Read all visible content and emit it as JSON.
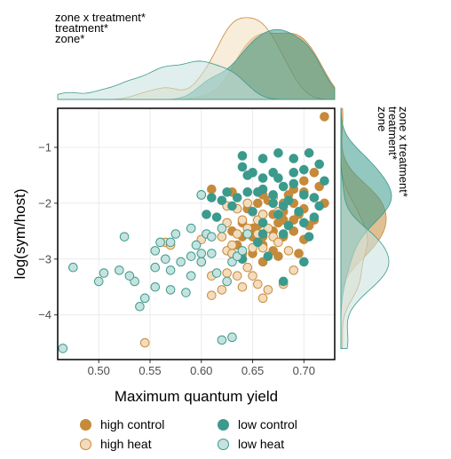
{
  "chart_data": {
    "type": "scatter",
    "xlabel": "Maximum quantum yield",
    "ylabel": "log(sym/host)",
    "xlim": [
      0.46,
      0.73
    ],
    "ylim": [
      -4.8,
      -0.3
    ],
    "xticks": [
      "0.50",
      "0.55",
      "0.60",
      "0.65",
      "0.70"
    ],
    "xtick_values": [
      0.5,
      0.55,
      0.6,
      0.65,
      0.7
    ],
    "yticks": [
      "−1",
      "−2",
      "−3",
      "−4"
    ],
    "ytick_values": [
      -1,
      -2,
      -3,
      -4
    ],
    "grid": true,
    "legend_position": "bottom",
    "annotations_top": [
      "zone x treatment*",
      "treatment*",
      "zone*"
    ],
    "annotations_right": [
      "zone x treatment*",
      "treatment*",
      "zone"
    ],
    "series": [
      {
        "name": "high control",
        "fill": "#c68a3b",
        "stroke": "#c68a3b",
        "points": [
          [
            0.61,
            -1.75
          ],
          [
            0.71,
            -1.45
          ],
          [
            0.71,
            -1.9
          ],
          [
            0.7,
            -1.6
          ],
          [
            0.69,
            -1.75
          ],
          [
            0.68,
            -2.0
          ],
          [
            0.68,
            -2.3
          ],
          [
            0.67,
            -2.5
          ],
          [
            0.66,
            -2.6
          ],
          [
            0.66,
            -2.75
          ],
          [
            0.65,
            -2.9
          ],
          [
            0.64,
            -2.9
          ],
          [
            0.64,
            -2.6
          ],
          [
            0.67,
            -2.85
          ],
          [
            0.69,
            -2.3
          ],
          [
            0.7,
            -2.1
          ],
          [
            0.71,
            -2.3
          ],
          [
            0.72,
            -2.0
          ],
          [
            0.7,
            -1.8
          ],
          [
            0.69,
            -2.0
          ],
          [
            0.68,
            -2.15
          ],
          [
            0.67,
            -2.2
          ],
          [
            0.665,
            -1.95
          ],
          [
            0.66,
            -1.85
          ],
          [
            0.655,
            -2.4
          ],
          [
            0.65,
            -2.6
          ],
          [
            0.645,
            -2.1
          ],
          [
            0.64,
            -2.35
          ],
          [
            0.635,
            -2.75
          ],
          [
            0.66,
            -2.2
          ],
          [
            0.68,
            -2.6
          ],
          [
            0.69,
            -2.5
          ],
          [
            0.715,
            -1.7
          ],
          [
            0.705,
            -2.4
          ],
          [
            0.72,
            -0.45
          ],
          [
            0.695,
            -2.9
          ],
          [
            0.675,
            -2.35
          ],
          [
            0.685,
            -1.85
          ],
          [
            0.63,
            -2.5
          ],
          [
            0.64,
            -3.0
          ],
          [
            0.65,
            -2.45
          ],
          [
            0.66,
            -3.05
          ],
          [
            0.655,
            -2.0
          ],
          [
            0.695,
            -2.2
          ],
          [
            0.7,
            -2.65
          ],
          [
            0.675,
            -2.95
          ],
          [
            0.63,
            -1.8
          ]
        ]
      },
      {
        "name": "high heat",
        "fill": "#f3dcbc",
        "stroke": "#c68a3b",
        "points": [
          [
            0.545,
            -4.5
          ],
          [
            0.565,
            -2.7
          ],
          [
            0.57,
            -2.75
          ],
          [
            0.6,
            -2.65
          ],
          [
            0.61,
            -3.65
          ],
          [
            0.62,
            -2.6
          ],
          [
            0.625,
            -2.85
          ],
          [
            0.625,
            -3.25
          ],
          [
            0.63,
            -2.75
          ],
          [
            0.63,
            -2.9
          ],
          [
            0.635,
            -2.55
          ],
          [
            0.64,
            -2.3
          ],
          [
            0.645,
            -2.0
          ],
          [
            0.645,
            -3.15
          ],
          [
            0.65,
            -2.8
          ],
          [
            0.65,
            -3.3
          ],
          [
            0.655,
            -2.3
          ],
          [
            0.655,
            -3.45
          ],
          [
            0.66,
            -2.2
          ],
          [
            0.66,
            -2.8
          ],
          [
            0.66,
            -3.7
          ],
          [
            0.665,
            -2.45
          ],
          [
            0.67,
            -2.6
          ],
          [
            0.67,
            -1.9
          ],
          [
            0.675,
            -2.7
          ],
          [
            0.68,
            -3.45
          ],
          [
            0.685,
            -2.85
          ],
          [
            0.69,
            -3.2
          ],
          [
            0.655,
            -2.55
          ],
          [
            0.625,
            -2.05
          ],
          [
            0.62,
            -3.55
          ],
          [
            0.64,
            -3.5
          ],
          [
            0.645,
            -2.45
          ],
          [
            0.61,
            -3.3
          ],
          [
            0.635,
            -2.1
          ],
          [
            0.665,
            -3.55
          ],
          [
            0.675,
            -2.15
          ],
          [
            0.6,
            -3.05
          ],
          [
            0.635,
            -3.3
          ],
          [
            0.625,
            -2.35
          ]
        ]
      },
      {
        "name": "low control",
        "fill": "#3b9a8c",
        "stroke": "#3b9a8c",
        "points": [
          [
            0.63,
            -2.05
          ],
          [
            0.65,
            -1.45
          ],
          [
            0.66,
            -1.75
          ],
          [
            0.67,
            -1.85
          ],
          [
            0.68,
            -1.7
          ],
          [
            0.69,
            -1.2
          ],
          [
            0.7,
            -1.4
          ],
          [
            0.705,
            -1.1
          ],
          [
            0.71,
            -1.9
          ],
          [
            0.72,
            -1.6
          ],
          [
            0.715,
            -2.05
          ],
          [
            0.695,
            -2.15
          ],
          [
            0.685,
            -2.4
          ],
          [
            0.68,
            -2.55
          ],
          [
            0.675,
            -2.2
          ],
          [
            0.67,
            -2.0
          ],
          [
            0.66,
            -2.55
          ],
          [
            0.655,
            -1.8
          ],
          [
            0.645,
            -1.5
          ],
          [
            0.64,
            -1.35
          ],
          [
            0.635,
            -1.9
          ],
          [
            0.62,
            -1.95
          ],
          [
            0.615,
            -2.25
          ],
          [
            0.61,
            -1.9
          ],
          [
            0.6,
            -1.85
          ],
          [
            0.605,
            -2.2
          ],
          [
            0.66,
            -1.2
          ],
          [
            0.675,
            -1.1
          ],
          [
            0.69,
            -1.65
          ],
          [
            0.7,
            -2.35
          ],
          [
            0.705,
            -2.6
          ],
          [
            0.68,
            -3.4
          ],
          [
            0.7,
            -3.05
          ],
          [
            0.665,
            -2.95
          ],
          [
            0.64,
            -3.0
          ],
          [
            0.65,
            -2.15
          ],
          [
            0.66,
            -1.55
          ],
          [
            0.675,
            -1.55
          ],
          [
            0.685,
            -1.95
          ],
          [
            0.67,
            -1.45
          ],
          [
            0.69,
            -1.45
          ],
          [
            0.7,
            -1.85
          ],
          [
            0.71,
            -2.25
          ],
          [
            0.715,
            -1.3
          ],
          [
            0.68,
            -2.05
          ],
          [
            0.655,
            -2.7
          ],
          [
            0.645,
            -1.8
          ],
          [
            0.625,
            -1.8
          ],
          [
            0.64,
            -1.15
          ],
          [
            0.66,
            -2.35
          ]
        ]
      },
      {
        "name": "low heat",
        "fill": "#c6e2df",
        "stroke": "#3b9a8c",
        "points": [
          [
            0.465,
            -4.6
          ],
          [
            0.475,
            -3.15
          ],
          [
            0.5,
            -3.4
          ],
          [
            0.505,
            -3.25
          ],
          [
            0.52,
            -3.2
          ],
          [
            0.525,
            -2.6
          ],
          [
            0.535,
            -3.4
          ],
          [
            0.545,
            -3.7
          ],
          [
            0.54,
            -3.85
          ],
          [
            0.555,
            -3.15
          ],
          [
            0.555,
            -3.5
          ],
          [
            0.56,
            -2.7
          ],
          [
            0.565,
            -3.0
          ],
          [
            0.57,
            -2.7
          ],
          [
            0.57,
            -3.2
          ],
          [
            0.575,
            -2.55
          ],
          [
            0.58,
            -3.05
          ],
          [
            0.585,
            -3.6
          ],
          [
            0.59,
            -2.95
          ],
          [
            0.59,
            -3.3
          ],
          [
            0.595,
            -2.75
          ],
          [
            0.6,
            -3.05
          ],
          [
            0.6,
            -1.85
          ],
          [
            0.605,
            -2.55
          ],
          [
            0.61,
            -2.6
          ],
          [
            0.615,
            -3.25
          ],
          [
            0.62,
            -2.45
          ],
          [
            0.625,
            -3.4
          ],
          [
            0.63,
            -4.4
          ],
          [
            0.63,
            -3.05
          ],
          [
            0.635,
            -2.95
          ],
          [
            0.64,
            -2.85
          ],
          [
            0.645,
            -2.55
          ],
          [
            0.62,
            -4.45
          ],
          [
            0.57,
            -3.55
          ],
          [
            0.555,
            -2.85
          ],
          [
            0.59,
            -2.45
          ],
          [
            0.53,
            -3.3
          ],
          [
            0.6,
            -2.9
          ],
          [
            0.61,
            -2.9
          ]
        ]
      }
    ]
  }
}
